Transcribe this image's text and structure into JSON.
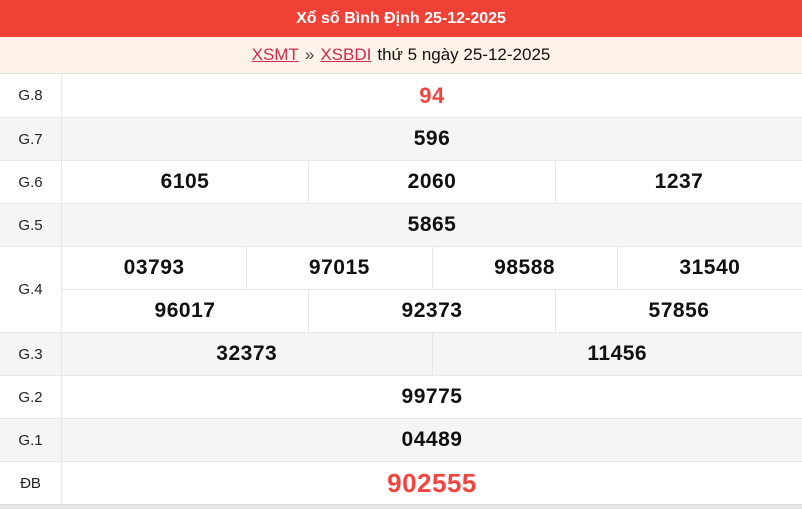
{
  "header": {
    "title": "Xổ số Bình Định 25-12-2025",
    "bg_color": "#ef4136",
    "text_color": "#ffffff"
  },
  "breadcrumb": {
    "links": [
      {
        "label": "XSMT"
      },
      {
        "label": "XSBDI"
      }
    ],
    "separator": "»",
    "suffix": "thứ 5 ngày 25-12-2025",
    "link_color": "#d02a4c",
    "bg_color": "#fdf2e7"
  },
  "results": {
    "highlight_color": "#f1463f",
    "rows": [
      {
        "label": "G.8",
        "values": [
          "94"
        ]
      },
      {
        "label": "G.7",
        "values": [
          "596"
        ]
      },
      {
        "label": "G.6",
        "values": [
          "6105",
          "2060",
          "1237"
        ]
      },
      {
        "label": "G.5",
        "values": [
          "5865"
        ]
      },
      {
        "label": "G.4",
        "line1": [
          "03793",
          "97015",
          "98588",
          "31540"
        ],
        "line2": [
          "96017",
          "92373",
          "57856"
        ]
      },
      {
        "label": "G.3",
        "values": [
          "32373",
          "11456"
        ]
      },
      {
        "label": "G.2",
        "values": [
          "99775"
        ]
      },
      {
        "label": "G.1",
        "values": [
          "04489"
        ]
      },
      {
        "label": "ĐB",
        "values": [
          "902555"
        ]
      }
    ]
  }
}
